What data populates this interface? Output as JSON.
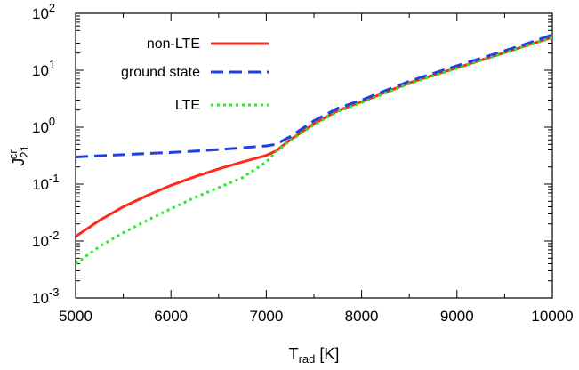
{
  "chart_data": {
    "type": "line",
    "xlabel": {
      "main": "T",
      "sub": "rad",
      "unit": " [K]"
    },
    "ylabel": {
      "main": "J",
      "sub": "21",
      "sup": "cr"
    },
    "xlim": [
      5000,
      10000
    ],
    "ylim": [
      0.001,
      100
    ],
    "yscale": "log",
    "grid": false,
    "legend_position": "top-left",
    "x_ticks": [
      "5000",
      "6000",
      "7000",
      "8000",
      "9000",
      "10000"
    ],
    "y_ticks": [
      {
        "base": "10",
        "exp": "-3"
      },
      {
        "base": "10",
        "exp": "-2"
      },
      {
        "base": "10",
        "exp": "-1"
      },
      {
        "base": "10",
        "exp": "0"
      },
      {
        "base": "10",
        "exp": "1"
      },
      {
        "base": "10",
        "exp": "2"
      }
    ],
    "series": [
      {
        "name": "non-LTE",
        "color": "#ff2a1a",
        "dash": "solid",
        "x": [
          5000,
          5250,
          5500,
          5750,
          6000,
          6250,
          6500,
          6750,
          7000,
          7100,
          7250,
          7500,
          7750,
          8000,
          8250,
          8500,
          8750,
          9000,
          9250,
          9500,
          9750,
          10000
        ],
        "y": [
          0.012,
          0.023,
          0.04,
          0.063,
          0.095,
          0.135,
          0.185,
          0.245,
          0.32,
          0.38,
          0.6,
          1.15,
          1.95,
          2.8,
          4.1,
          6.0,
          8.2,
          11.0,
          15.0,
          20.5,
          28.0,
          38.0
        ]
      },
      {
        "name": "ground state",
        "color": "#1f3fe0",
        "dash": "dashed",
        "x": [
          5000,
          5250,
          5500,
          5750,
          6000,
          6250,
          6500,
          6750,
          7000,
          7100,
          7250,
          7500,
          7750,
          8000,
          8250,
          8500,
          8750,
          9000,
          9250,
          9500,
          9750,
          10000
        ],
        "y": [
          0.3,
          0.315,
          0.33,
          0.345,
          0.36,
          0.38,
          0.405,
          0.435,
          0.47,
          0.5,
          0.68,
          1.3,
          2.15,
          3.0,
          4.4,
          6.4,
          8.8,
          12.0,
          16.2,
          22.0,
          30.0,
          42.0
        ]
      },
      {
        "name": "LTE",
        "color": "#22ee22",
        "dash": "dotted",
        "x": [
          5000,
          5250,
          5500,
          5750,
          6000,
          6250,
          6500,
          6750,
          7000,
          7100,
          7250,
          7500,
          7750,
          8000,
          8250,
          8500,
          8750,
          9000,
          9250,
          9500,
          9750,
          10000
        ],
        "y": [
          0.004,
          0.008,
          0.014,
          0.023,
          0.037,
          0.058,
          0.087,
          0.13,
          0.245,
          0.37,
          0.58,
          1.1,
          1.9,
          2.7,
          4.0,
          5.8,
          8.0,
          10.8,
          14.8,
          20.2,
          27.5,
          37.5
        ]
      }
    ]
  }
}
